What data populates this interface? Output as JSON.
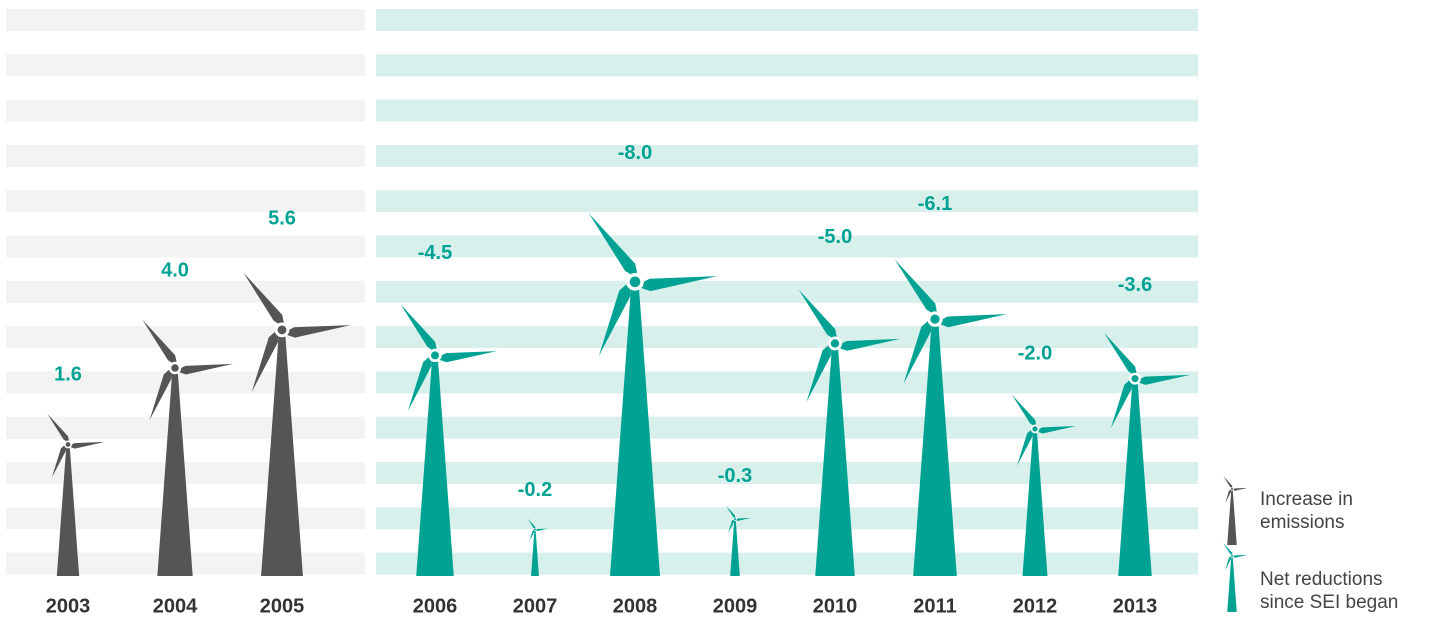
{
  "chart_data": {
    "type": "pictograph",
    "categories": [
      "2003",
      "2004",
      "2005",
      "2006",
      "2007",
      "2008",
      "2009",
      "2010",
      "2011",
      "2012",
      "2013"
    ],
    "series": [
      {
        "name": "Increase in emissions",
        "color": "#555555",
        "values": [
          1.6,
          4.0,
          5.6,
          null,
          null,
          null,
          null,
          null,
          null,
          null,
          null
        ],
        "value_labels": [
          "1.6",
          "4.0",
          "5.6",
          null,
          null,
          null,
          null,
          null,
          null,
          null,
          null
        ]
      },
      {
        "name": "Net reductions since SEI began",
        "color": "#00a393",
        "values": [
          null,
          null,
          null,
          -4.5,
          -0.2,
          -8.0,
          -0.3,
          -5.0,
          -6.1,
          -2.0,
          -3.6
        ],
        "value_labels": [
          null,
          null,
          null,
          "-4.5",
          "-0.2",
          "-8.0",
          "-0.3",
          "-5.0",
          "-6.1",
          "-2.0",
          "-3.6"
        ]
      }
    ],
    "label_color": "#00a393"
  }
}
